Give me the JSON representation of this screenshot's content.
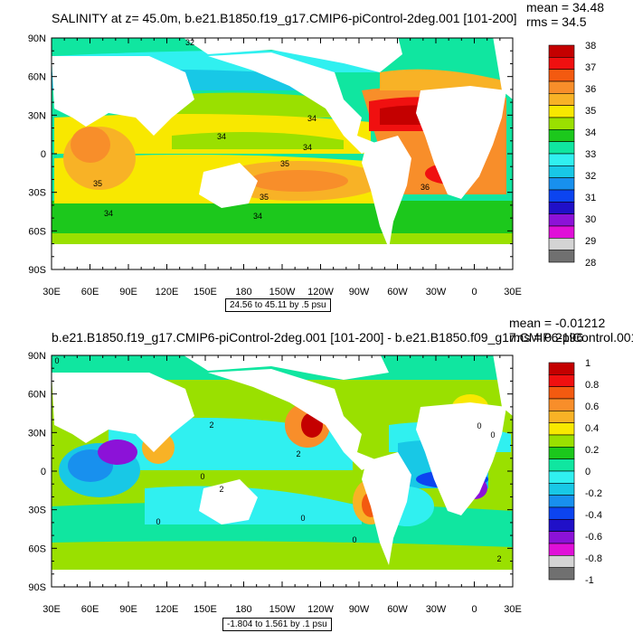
{
  "chart_data": [
    {
      "type": "heatmap",
      "title": "SALINITY at z=  45.0m, b.e21.B1850.f19_g17.CMIP6-piControl-2deg.001 [101-200]",
      "stats": [
        "mean = 34.48",
        "rms = 34.5"
      ],
      "x_ticks": [
        "30E",
        "60E",
        "90E",
        "120E",
        "150E",
        "180",
        "150W",
        "120W",
        "90W",
        "60W",
        "30W",
        "0",
        "30E"
      ],
      "y_ticks": [
        "90N",
        "60N",
        "30N",
        "0",
        "30S",
        "60S",
        "90S"
      ],
      "range_label": "24.56 to 45.11 by .5 psu",
      "colorbar": {
        "labels": [
          "38",
          "37",
          "36",
          "35",
          "34",
          "33",
          "32",
          "31",
          "30",
          "29",
          "28"
        ],
        "colors": [
          "#c40000",
          "#f01010",
          "#f35a10",
          "#f88e2a",
          "#f8b226",
          "#f8e800",
          "#9ae000",
          "#1cc81c",
          "#10e6a0",
          "#30f0f0",
          "#18c8e6",
          "#1890ee",
          "#0c44f0",
          "#2010c8",
          "#8c12d8",
          "#e010d8",
          "#d4d4d4",
          "#707070"
        ]
      },
      "contour_labels": [
        "32",
        "34",
        "34",
        "34",
        "35",
        "35",
        "35",
        "34",
        "36",
        "34"
      ]
    },
    {
      "type": "heatmap",
      "title": "b.e21.B1850.f19_g17.CMIP6-piControl-2deg.001 [101-200] - b.e21.B1850.f09_g17.CMIP6-piControl.001",
      "stats": [
        "mean = -0.01212",
        "rms = 0.2196"
      ],
      "x_ticks": [
        "30E",
        "60E",
        "90E",
        "120E",
        "150E",
        "180",
        "150W",
        "120W",
        "90W",
        "60W",
        "30W",
        "0",
        "30E"
      ],
      "y_ticks": [
        "90N",
        "60N",
        "30N",
        "0",
        "30S",
        "60S",
        "90S"
      ],
      "range_label": "-1.804 to 1.561 by .1 psu",
      "colorbar": {
        "labels": [
          "1",
          "0.8",
          "0.6",
          "0.4",
          "0.2",
          "0",
          "-0.2",
          "-0.4",
          "-0.6",
          "-0.8",
          "-1"
        ],
        "colors": [
          "#c40000",
          "#f01010",
          "#f35a10",
          "#f88e2a",
          "#f8b226",
          "#f8e800",
          "#9ae000",
          "#1cc81c",
          "#10e6a0",
          "#30f0f0",
          "#18c8e6",
          "#1890ee",
          "#0c44f0",
          "#2010c8",
          "#8c12d8",
          "#e010d8",
          "#d4d4d4",
          "#707070"
        ]
      },
      "contour_labels": [
        "0",
        "2",
        "2",
        "0",
        "0",
        "0",
        "0",
        "0",
        "2",
        "0",
        "2"
      ]
    }
  ]
}
